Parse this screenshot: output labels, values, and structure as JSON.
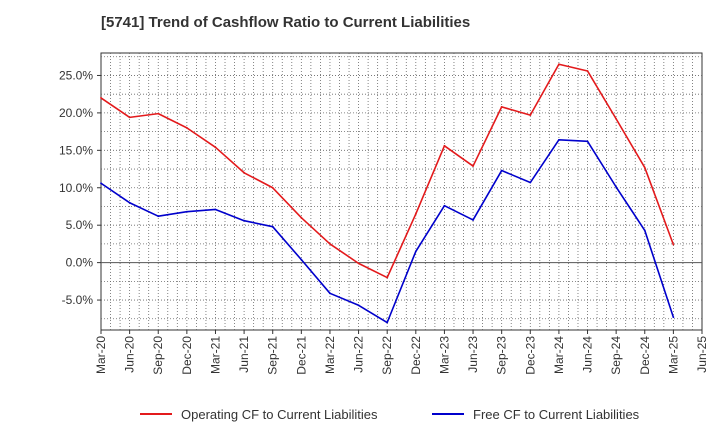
{
  "chart_data": {
    "type": "line",
    "title": "[5741]  Trend of Cashflow Ratio to Current Liabilities",
    "xlabel": "",
    "ylabel": "",
    "x": [
      "Mar-20",
      "Jun-20",
      "Sep-20",
      "Dec-20",
      "Mar-21",
      "Jun-21",
      "Sep-21",
      "Dec-21",
      "Mar-22",
      "Jun-22",
      "Sep-22",
      "Dec-22",
      "Mar-23",
      "Jun-23",
      "Sep-23",
      "Dec-23",
      "Mar-24",
      "Jun-24",
      "Sep-24",
      "Dec-24",
      "Mar-25",
      "Jun-25"
    ],
    "ylim": [
      -9,
      28
    ],
    "yticks": [
      -5,
      0,
      5,
      10,
      15,
      20,
      25
    ],
    "ytick_labels": [
      "-5.0%",
      "0.0%",
      "5.0%",
      "10.0%",
      "15.0%",
      "20.0%",
      "25.0%"
    ],
    "grid": true,
    "legend_position": "bottom",
    "series": [
      {
        "name": "Operating CF to Current Liabilities",
        "color": "#e31a1c",
        "values": [
          22.0,
          19.4,
          19.9,
          18.0,
          15.4,
          12.0,
          10.0,
          6.0,
          2.5,
          -0.1,
          -2.0,
          6.5,
          15.6,
          12.9,
          20.8,
          19.7,
          26.5,
          25.6,
          19.2,
          12.7,
          2.4,
          null
        ]
      },
      {
        "name": "Free CF to Current Liabilities",
        "color": "#0000cc",
        "values": [
          10.6,
          8.0,
          6.2,
          6.8,
          7.1,
          5.6,
          4.8,
          0.4,
          -4.1,
          -5.7,
          -8.0,
          1.5,
          7.6,
          5.7,
          12.3,
          10.7,
          16.4,
          16.2,
          10.1,
          4.3,
          -7.3,
          null
        ]
      }
    ]
  }
}
